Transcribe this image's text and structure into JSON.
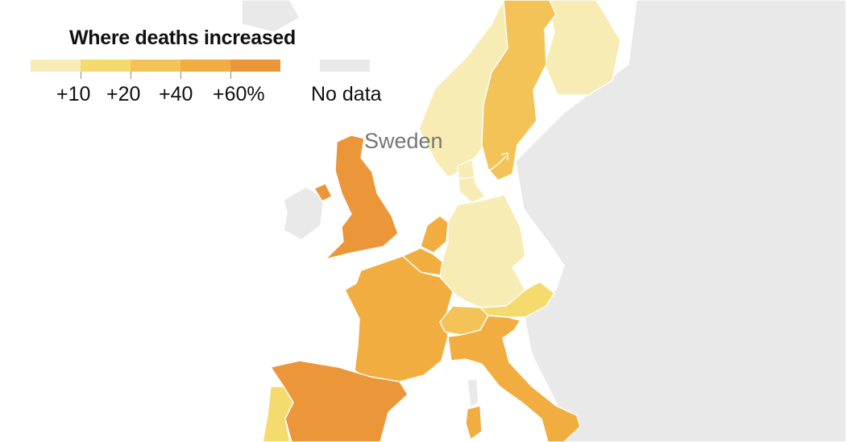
{
  "legend": {
    "title": "Where deaths increased",
    "ticks": [
      "+10",
      "+20",
      "+40",
      "+60%"
    ],
    "no_data_label": "No data",
    "colors": [
      "#f7ecb3",
      "#f5db6e",
      "#f3c357",
      "#f1ad40",
      "#ec963a"
    ],
    "no_data_color": "#e9e9e9"
  },
  "annotation": {
    "text": "Sweden",
    "color": "#777777"
  },
  "map": {
    "regions": [
      {
        "name": "Sweden",
        "category": 2
      },
      {
        "name": "Norway",
        "category": 0
      },
      {
        "name": "Finland",
        "category": 0
      },
      {
        "name": "Denmark",
        "category": 0
      },
      {
        "name": "United Kingdom",
        "category": 4
      },
      {
        "name": "Netherlands",
        "category": 3
      },
      {
        "name": "Belgium",
        "category": 3
      },
      {
        "name": "Germany",
        "category": 0
      },
      {
        "name": "France",
        "category": 3
      },
      {
        "name": "Switzerland",
        "category": 2
      },
      {
        "name": "Austria",
        "category": 1
      },
      {
        "name": "Italy",
        "category": 3
      },
      {
        "name": "Spain",
        "category": 4
      },
      {
        "name": "Portugal",
        "category": 1
      }
    ]
  }
}
